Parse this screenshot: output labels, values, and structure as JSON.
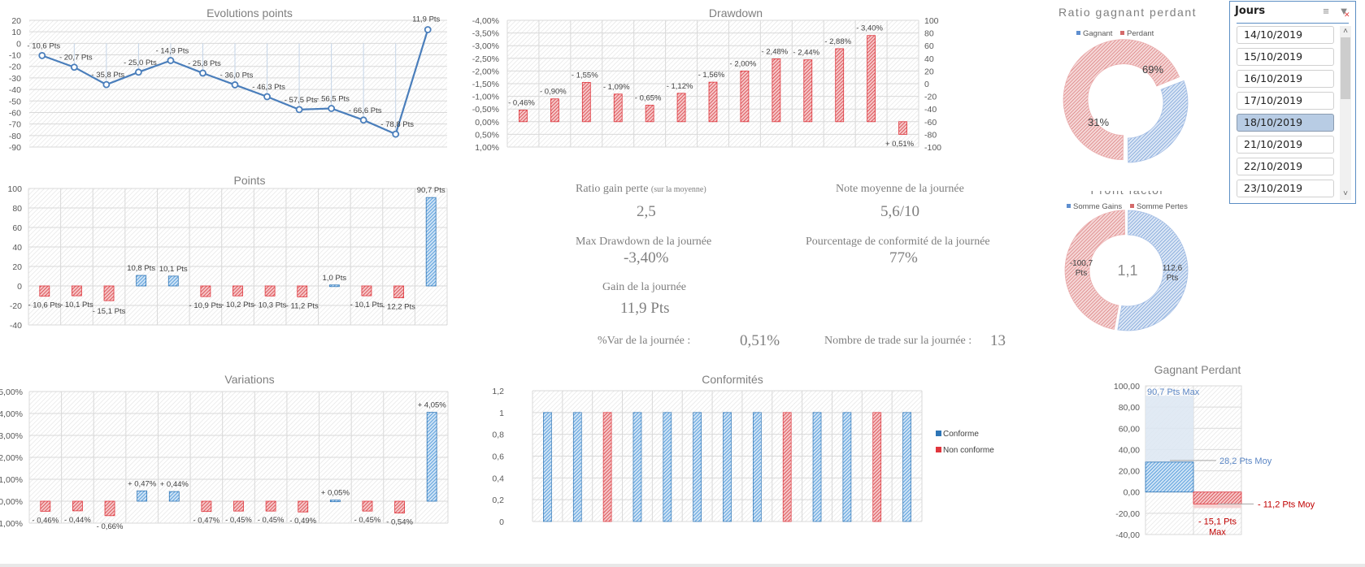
{
  "colors": {
    "blue": "#5b9bd5",
    "blue_dark": "#2e75b6",
    "red": "#e0363d",
    "red_dark": "#c00000",
    "line_blue": "#4a7ebb",
    "pie_blue": "#7ea3d6",
    "pie_red": "#e27b7b",
    "grid": "#d9d9d9",
    "text": "#595959",
    "title": "#7f7f7f",
    "slicer_border": "#5b8ec4",
    "slicer_selected": "#b8cce4"
  },
  "chart_data": [
    {
      "id": "evolution",
      "type": "line",
      "title": "Evolutions points",
      "ylim": [
        -90,
        20
      ],
      "yticks": [
        20,
        10,
        0,
        -10,
        -20,
        -30,
        -40,
        -50,
        -60,
        -70,
        -80,
        -90
      ],
      "grid": true,
      "values": [
        -10.6,
        -20.7,
        -35.8,
        -25.0,
        -14.9,
        -25.8,
        -36.0,
        -46.3,
        -57.5,
        -56.5,
        -66.6,
        -78.8,
        11.9
      ],
      "labels": [
        "- 10,6 Pts",
        "- 20,7 Pts",
        "- 35,8 Pts",
        "- 25,0 Pts",
        "- 14,9 Pts",
        "- 25,8 Pts",
        "- 36,0 Pts",
        "- 46,3 Pts",
        "- 57,5 Pts",
        "- 56,5 Pts",
        "- 66,6 Pts",
        "- 78,8 Pts",
        "11,9 Pts"
      ]
    },
    {
      "id": "drawdown",
      "type": "bar",
      "title": "Drawdown",
      "ylim": [
        1.0,
        -4.0
      ],
      "yticks": [
        "-4,00%",
        "-3,50%",
        "-3,00%",
        "-2,50%",
        "-2,00%",
        "-1,50%",
        "-1,00%",
        "-0,50%",
        "0,00%",
        "0,50%",
        "1,00%"
      ],
      "y2ticks": [
        "100",
        "80",
        "60",
        "40",
        "20",
        "0",
        "-20",
        "-40",
        "-60",
        "-80",
        "-100"
      ],
      "y2lim": [
        -100,
        100
      ],
      "grid": true,
      "values": [
        -0.46,
        -0.9,
        -1.55,
        -1.09,
        -0.65,
        -1.12,
        -1.56,
        -2.0,
        -2.48,
        -2.44,
        -2.88,
        -3.4,
        0.51
      ],
      "labels": [
        "- 0,46%",
        "- 0,90%",
        "- 1,55%",
        "- 1,09%",
        "- 0,65%",
        "- 1,12%",
        "- 1,56%",
        "- 2,00%",
        "- 2,48%",
        "- 2,44%",
        "- 2,88%",
        "- 3,40%",
        "+ 0,51%"
      ]
    },
    {
      "id": "ratio",
      "type": "pie",
      "title": "Ratio gagnant perdant",
      "legend": [
        "Gagnant",
        "Perdant"
      ],
      "legend_position": "top",
      "values": [
        31,
        69
      ],
      "labels": [
        "31%",
        "69%"
      ]
    },
    {
      "id": "points",
      "type": "bar",
      "title": "Points",
      "ylim": [
        -40,
        100
      ],
      "yticks": [
        100,
        80,
        60,
        40,
        20,
        0,
        -20,
        -40
      ],
      "grid": true,
      "values": [
        -10.6,
        -10.1,
        -15.1,
        10.8,
        10.1,
        -10.9,
        -10.2,
        -10.3,
        -11.2,
        1.0,
        -10.1,
        -12.2,
        90.7
      ],
      "labels": [
        "- 10,6 Pts",
        "- 10,1 Pts",
        "- 15,1 Pts",
        "10,8 Pts",
        "10,1 Pts",
        "- 10,9 Pts",
        "- 10,2 Pts",
        "- 10,3 Pts",
        "- 11,2 Pts",
        "1,0 Pts",
        "- 10,1 Pts",
        "- 12,2 Pts",
        "90,7 Pts"
      ]
    },
    {
      "id": "profit",
      "type": "pie",
      "title": "Profit factor",
      "legend": [
        "Somme Gains",
        "Somme Pertes"
      ],
      "legend_position": "top",
      "values": [
        112.6,
        100.7
      ],
      "labels": [
        "112,6 Pts",
        "-100,7 Pts"
      ],
      "center_label": "1,1"
    },
    {
      "id": "variations",
      "type": "bar",
      "title": "Variations",
      "ylim": [
        -1.0,
        5.0
      ],
      "yticks": [
        "5,00%",
        "4,00%",
        "3,00%",
        "2,00%",
        "1,00%",
        "0,00%",
        "-1,00%"
      ],
      "grid": true,
      "values": [
        -0.46,
        -0.44,
        -0.66,
        0.47,
        0.44,
        -0.47,
        -0.45,
        -0.45,
        -0.49,
        0.05,
        -0.45,
        -0.54,
        4.05
      ],
      "labels": [
        "- 0,46%",
        "- 0,44%",
        "- 0,66%",
        "+ 0,47%",
        "+ 0,44%",
        "- 0,47%",
        "- 0,45%",
        "- 0,45%",
        "- 0,49%",
        "+ 0,05%",
        "- 0,45%",
        "- 0,54%",
        "+ 4,05%"
      ]
    },
    {
      "id": "conformites",
      "type": "bar",
      "title": "Conformités",
      "ylim": [
        0,
        1.2
      ],
      "yticks": [
        "1,2",
        "1",
        "0,8",
        "0,6",
        "0,4",
        "0,2",
        "0"
      ],
      "grid": true,
      "legend": [
        "Conforme",
        "Non conforme"
      ],
      "legend_position": "right",
      "series": [
        {
          "name": "Conforme",
          "values": [
            1,
            1,
            0,
            1,
            1,
            1,
            1,
            1,
            0,
            1,
            1,
            0,
            1
          ]
        },
        {
          "name": "Non conforme",
          "values": [
            0,
            0,
            1,
            0,
            0,
            0,
            0,
            0,
            1,
            0,
            0,
            1,
            0
          ]
        }
      ]
    },
    {
      "id": "gagnant_perdant",
      "type": "bar",
      "title": "Gagnant Perdant",
      "ylim": [
        -40,
        100
      ],
      "yticks": [
        "100,00",
        "80,00",
        "60,00",
        "40,00",
        "20,00",
        "0,00",
        "-20,00",
        "-40,00"
      ],
      "grid": true,
      "series": [
        {
          "name": "Gagnant",
          "max": 90.7,
          "avg": 28.2,
          "max_label": "90,7 Pts Max",
          "avg_label": "28,2 Pts Moy"
        },
        {
          "name": "Perdant",
          "max": -15.1,
          "avg": -11.2,
          "max_label": "- 15,1 Pts Max",
          "avg_label": "- 11,2 Pts Moy"
        }
      ]
    }
  ],
  "kpis": {
    "ratio_label": "Ratio gain perte",
    "ratio_sub": "(sur la moyenne)",
    "ratio_value": "2,5",
    "note_label": "Note moyenne de la journée",
    "note_value": "5,6/10",
    "maxdd_label": "Max Drawdown de la journée",
    "maxdd_value": "-3,40%",
    "conf_label": "Pourcentage de conformité de la journée",
    "conf_value": "77%",
    "gain_label": "Gain de la journée",
    "gain_value": "11,9 Pts",
    "var_label": "%Var de la journée :",
    "var_value": "0,51%",
    "trades_label": "Nombre de trade sur la journée :",
    "trades_value": "13"
  },
  "slicer": {
    "title": "Jours",
    "multiselect_icon": "multi-select-icon",
    "clear_icon": "clear-filter-icon",
    "items": [
      {
        "label": "14/10/2019",
        "selected": false
      },
      {
        "label": "15/10/2019",
        "selected": false
      },
      {
        "label": "16/10/2019",
        "selected": false
      },
      {
        "label": "17/10/2019",
        "selected": false
      },
      {
        "label": "18/10/2019",
        "selected": true
      },
      {
        "label": "21/10/2019",
        "selected": false
      },
      {
        "label": "22/10/2019",
        "selected": false
      },
      {
        "label": "23/10/2019",
        "selected": false
      }
    ]
  }
}
